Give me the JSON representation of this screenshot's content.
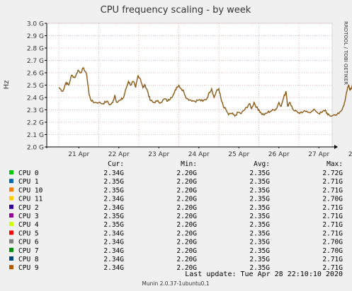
{
  "chart_data": {
    "type": "line",
    "title": "CPU frequency scaling - by week",
    "ylabel": "Hz",
    "side_label": "RRDTOOL / TOBI OETIKER",
    "y_ticks": [
      "2.0 G",
      "2.1 G",
      "2.2 G",
      "2.3 G",
      "2.4 G",
      "2.5 G",
      "2.6 G",
      "2.7 G",
      "2.8 G",
      "2.9 G",
      "3.0 G"
    ],
    "ylim": [
      2.0,
      3.0
    ],
    "x_ticks": [
      "21 Apr",
      "22 Apr",
      "23 Apr",
      "24 Apr",
      "25 Apr",
      "26 Apr",
      "27 Apr",
      "28 Apr"
    ],
    "grid": true,
    "series_color": "#8b5a14",
    "series_points": [
      [
        0.0,
        2.48
      ],
      [
        0.1,
        2.45
      ],
      [
        0.18,
        2.52
      ],
      [
        0.25,
        2.5
      ],
      [
        0.32,
        2.58
      ],
      [
        0.4,
        2.56
      ],
      [
        0.48,
        2.62
      ],
      [
        0.55,
        2.6
      ],
      [
        0.62,
        2.64
      ],
      [
        0.7,
        2.58
      ],
      [
        0.76,
        2.42
      ],
      [
        0.82,
        2.37
      ],
      [
        0.9,
        2.36
      ],
      [
        1.0,
        2.36
      ],
      [
        1.1,
        2.35
      ],
      [
        1.2,
        2.37
      ],
      [
        1.28,
        2.34
      ],
      [
        1.35,
        2.36
      ],
      [
        1.4,
        2.42
      ],
      [
        1.45,
        2.36
      ],
      [
        1.55,
        2.38
      ],
      [
        1.62,
        2.4
      ],
      [
        1.68,
        2.47
      ],
      [
        1.74,
        2.53
      ],
      [
        1.8,
        2.5
      ],
      [
        1.86,
        2.53
      ],
      [
        1.92,
        2.48
      ],
      [
        1.98,
        2.58
      ],
      [
        2.04,
        2.55
      ],
      [
        2.1,
        2.48
      ],
      [
        2.16,
        2.5
      ],
      [
        2.22,
        2.45
      ],
      [
        2.28,
        2.38
      ],
      [
        2.36,
        2.36
      ],
      [
        2.45,
        2.37
      ],
      [
        2.55,
        2.36
      ],
      [
        2.65,
        2.39
      ],
      [
        2.72,
        2.37
      ],
      [
        2.8,
        2.4
      ],
      [
        2.88,
        2.43
      ],
      [
        2.94,
        2.48
      ],
      [
        3.0,
        2.5
      ],
      [
        3.06,
        2.47
      ],
      [
        3.12,
        2.45
      ],
      [
        3.2,
        2.39
      ],
      [
        3.3,
        2.38
      ],
      [
        3.4,
        2.37
      ],
      [
        3.5,
        2.38
      ],
      [
        3.6,
        2.37
      ],
      [
        3.7,
        2.39
      ],
      [
        3.76,
        2.44
      ],
      [
        3.82,
        2.47
      ],
      [
        3.88,
        2.4
      ],
      [
        3.94,
        2.45
      ],
      [
        4.0,
        2.47
      ],
      [
        4.06,
        2.38
      ],
      [
        4.12,
        2.32
      ],
      [
        4.18,
        2.3
      ],
      [
        4.24,
        2.26
      ],
      [
        4.32,
        2.27
      ],
      [
        4.4,
        2.25
      ],
      [
        4.48,
        2.28
      ],
      [
        4.56,
        2.27
      ],
      [
        4.64,
        2.3
      ],
      [
        4.7,
        2.32
      ],
      [
        4.76,
        2.35
      ],
      [
        4.82,
        2.31
      ],
      [
        4.88,
        2.36
      ],
      [
        4.94,
        2.32
      ],
      [
        5.0,
        2.3
      ],
      [
        5.06,
        2.27
      ],
      [
        5.14,
        2.26
      ],
      [
        5.22,
        2.28
      ],
      [
        5.3,
        2.29
      ],
      [
        5.38,
        2.3
      ],
      [
        5.44,
        2.31
      ],
      [
        5.5,
        2.36
      ],
      [
        5.56,
        2.33
      ],
      [
        5.62,
        2.4
      ],
      [
        5.68,
        2.45
      ],
      [
        5.72,
        2.33
      ],
      [
        5.78,
        2.36
      ],
      [
        5.86,
        2.3
      ],
      [
        5.94,
        2.29
      ],
      [
        6.02,
        2.27
      ],
      [
        6.1,
        2.28
      ],
      [
        6.2,
        2.29
      ],
      [
        6.3,
        2.28
      ],
      [
        6.4,
        2.3
      ],
      [
        6.5,
        2.27
      ],
      [
        6.58,
        2.28
      ],
      [
        6.66,
        2.3
      ],
      [
        6.72,
        2.26
      ],
      [
        6.8,
        2.25
      ],
      [
        6.9,
        2.26
      ],
      [
        7.0,
        2.27
      ],
      [
        7.08,
        2.3
      ],
      [
        7.14,
        2.36
      ],
      [
        7.2,
        2.45
      ],
      [
        7.24,
        2.5
      ],
      [
        7.28,
        2.46
      ],
      [
        7.32,
        2.48
      ],
      [
        7.36,
        2.55
      ],
      [
        7.4,
        2.44
      ],
      [
        7.44,
        2.42
      ],
      [
        7.48,
        2.34
      ],
      [
        7.52,
        2.28
      ],
      [
        7.55,
        2.22
      ],
      [
        7.6,
        2.21
      ],
      [
        7.68,
        2.21
      ],
      [
        7.76,
        2.21
      ],
      [
        7.84,
        2.21
      ],
      [
        7.88,
        2.32
      ],
      [
        7.92,
        2.34
      ],
      [
        7.98,
        2.33
      ],
      [
        8.04,
        2.36
      ],
      [
        8.1,
        2.34
      ],
      [
        8.16,
        2.39
      ],
      [
        8.22,
        2.4
      ],
      [
        8.3,
        2.37
      ],
      [
        8.38,
        2.39
      ],
      [
        8.44,
        2.37
      ],
      [
        8.5,
        2.35
      ]
    ]
  },
  "legend": {
    "columns": [
      "Cur:",
      "Min:",
      "Avg:",
      "Max:"
    ],
    "rows": [
      {
        "name": "CPU 0",
        "color": "#00cc00",
        "cur": "2.34G",
        "min": "2.20G",
        "avg": "2.35G",
        "max": "2.72G"
      },
      {
        "name": "CPU 1",
        "color": "#0066b3",
        "cur": "2.35G",
        "min": "2.20G",
        "avg": "2.35G",
        "max": "2.71G"
      },
      {
        "name": "CPU 10",
        "color": "#ff8000",
        "cur": "2.35G",
        "min": "2.20G",
        "avg": "2.35G",
        "max": "2.71G"
      },
      {
        "name": "CPU 11",
        "color": "#ffcc00",
        "cur": "2.34G",
        "min": "2.20G",
        "avg": "2.35G",
        "max": "2.70G"
      },
      {
        "name": "CPU 2",
        "color": "#330099",
        "cur": "2.34G",
        "min": "2.20G",
        "avg": "2.35G",
        "max": "2.71G"
      },
      {
        "name": "CPU 3",
        "color": "#990099",
        "cur": "2.35G",
        "min": "2.20G",
        "avg": "2.35G",
        "max": "2.71G"
      },
      {
        "name": "CPU 4",
        "color": "#ccff00",
        "cur": "2.35G",
        "min": "2.20G",
        "avg": "2.35G",
        "max": "2.71G"
      },
      {
        "name": "CPU 5",
        "color": "#ff0000",
        "cur": "2.34G",
        "min": "2.20G",
        "avg": "2.35G",
        "max": "2.71G"
      },
      {
        "name": "CPU 6",
        "color": "#808080",
        "cur": "2.34G",
        "min": "2.20G",
        "avg": "2.35G",
        "max": "2.70G"
      },
      {
        "name": "CPU 7",
        "color": "#008f00",
        "cur": "2.34G",
        "min": "2.20G",
        "avg": "2.35G",
        "max": "2.70G"
      },
      {
        "name": "CPU 8",
        "color": "#00487d",
        "cur": "2.34G",
        "min": "2.20G",
        "avg": "2.35G",
        "max": "2.71G"
      },
      {
        "name": "CPU 9",
        "color": "#b35a00",
        "cur": "2.34G",
        "min": "2.20G",
        "avg": "2.35G",
        "max": "2.71G"
      }
    ]
  },
  "last_update": "Last update: Tue Apr 28 22:10:10 2020",
  "footer": "Munin 2.0.37-1ubuntu0.1"
}
